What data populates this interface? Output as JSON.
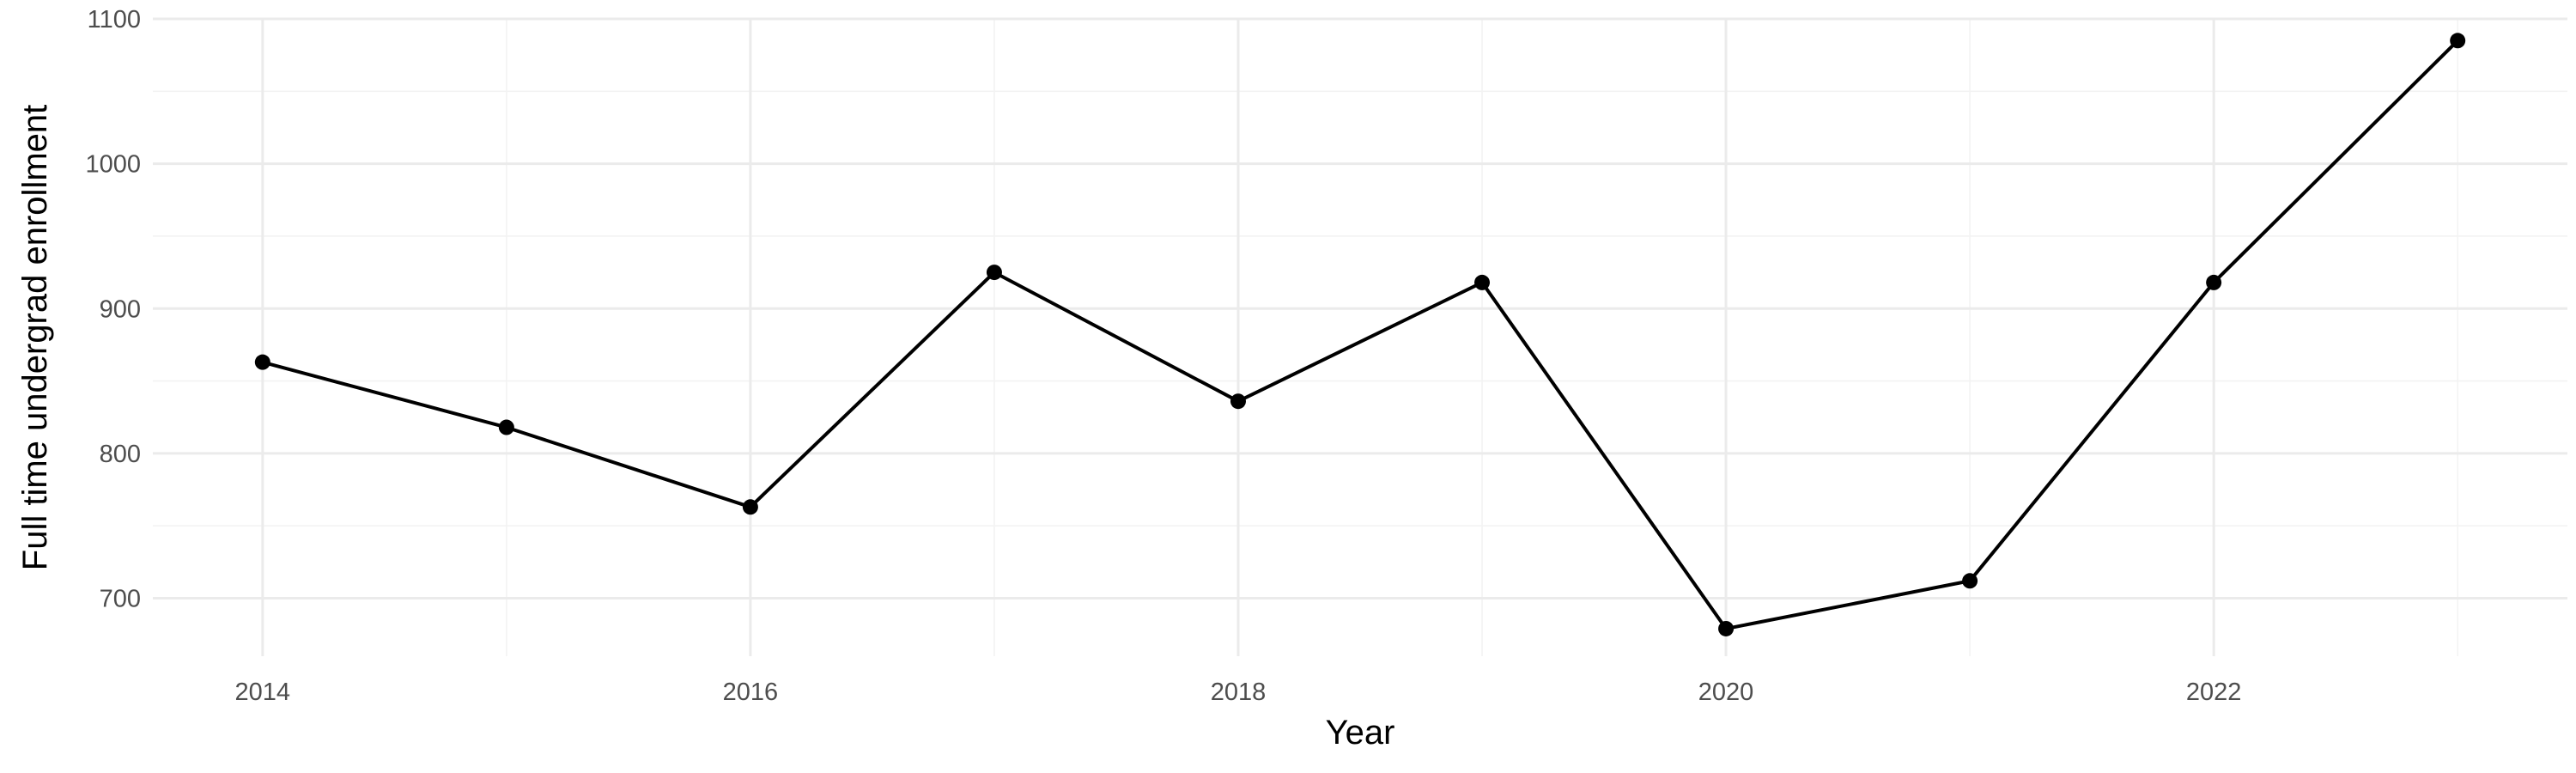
{
  "chart_data": {
    "type": "line",
    "title": "",
    "xlabel": "Year",
    "ylabel": "Full time undergrad enrollment",
    "x": [
      2014,
      2015,
      2016,
      2017,
      2018,
      2019,
      2020,
      2021,
      2022,
      2023
    ],
    "series": [
      {
        "values": [
          863,
          818,
          763,
          925,
          836,
          918,
          679,
          712,
          918,
          1085
        ]
      }
    ],
    "xlim": [
      2013.55,
      2023.45
    ],
    "ylim": [
      660,
      1100
    ],
    "x_ticks": [
      2014,
      2016,
      2018,
      2020,
      2022
    ],
    "x_tick_labels": [
      "2014",
      "2016",
      "2018",
      "2020",
      "2022"
    ],
    "y_ticks": [
      700,
      800,
      900,
      1000,
      1100
    ],
    "y_tick_labels": [
      "700",
      "800",
      "900",
      "1000",
      "1100"
    ],
    "grid": true,
    "legend": "none",
    "colors": {
      "line": "#000000",
      "points": "#000000",
      "grid": "#ebebeb",
      "tick_text": "#4d4d4d"
    }
  }
}
